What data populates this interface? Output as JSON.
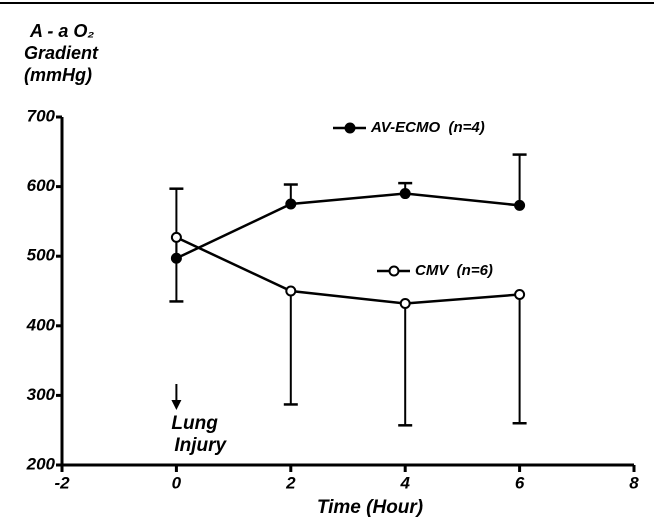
{
  "chart_data": {
    "type": "line",
    "ylabel": [
      "A - a O₂",
      "Gradient",
      "(mmHg)"
    ],
    "xlabel": "Time (Hour)",
    "annotation": [
      "Lung",
      "Injury"
    ],
    "x": [
      0,
      2,
      4,
      6
    ],
    "series": [
      {
        "name": "AV-ECMO  (n=4)",
        "color": "#000000",
        "marker_fill": "#000000",
        "values": [
          497,
          575,
          590,
          573
        ],
        "errors": [
          100,
          28,
          15,
          73
        ],
        "error_direction": "up"
      },
      {
        "name": "CMV  (n=6)",
        "color": "#000000",
        "marker_fill": "#ffffff",
        "values": [
          527,
          450,
          432,
          445
        ],
        "errors": [
          92,
          163,
          175,
          185
        ],
        "error_direction": "down"
      }
    ],
    "xlim": [
      -2,
      8
    ],
    "xticks": [
      -2,
      0,
      2,
      4,
      6,
      8
    ],
    "ylim": [
      200,
      700
    ],
    "yticks": [
      200,
      300,
      400,
      500,
      600,
      700
    ]
  }
}
